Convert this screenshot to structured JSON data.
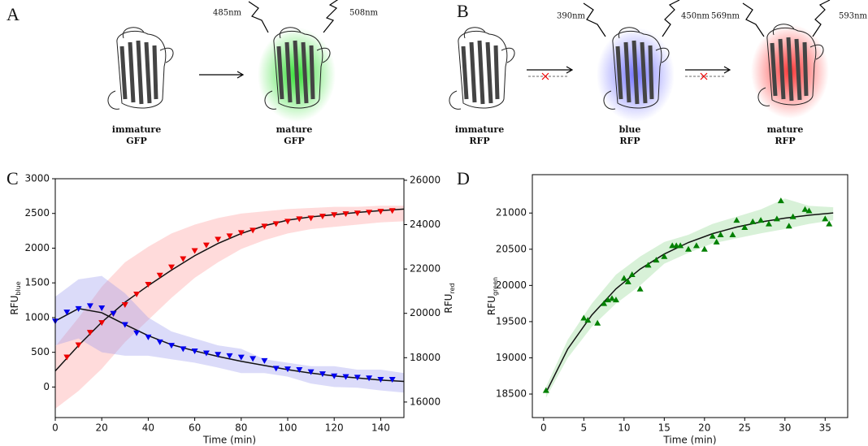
{
  "diagram": {
    "panels": [
      "A",
      "B",
      "C",
      "D"
    ],
    "wavelengths": [
      "485nm",
      "508nm",
      "390nm",
      "450nm",
      "569nm",
      "593nm"
    ],
    "labels": [
      [
        "immature",
        "GFP"
      ],
      [
        "mature",
        "GFP"
      ],
      [
        "immature",
        "RFP"
      ],
      [
        "blue",
        "RFP"
      ],
      [
        "mature",
        "RFP"
      ]
    ]
  },
  "chart_data": [
    {
      "type": "scatter",
      "xlabel": "Time (min)",
      "ylabel": {
        "text": "RFU",
        "sub": "blue"
      },
      "y2label": {
        "text": "RFU",
        "sub": "red"
      },
      "xlim": [
        0,
        150
      ],
      "xticks": [
        0,
        20,
        40,
        60,
        80,
        100,
        120,
        140
      ],
      "ylim": [
        -440,
        3000
      ],
      "yticks": [
        0,
        500,
        1000,
        1500,
        2000,
        2500,
        3000
      ],
      "y2lim": [
        15300,
        26070
      ],
      "y2ticks": [
        16000,
        18000,
        20000,
        22000,
        24000,
        26000
      ],
      "series": [
        {
          "style": "band",
          "axis": "y2",
          "color": "#ff9999",
          "opacity": 0.35,
          "x": [
            0,
            10,
            20,
            30,
            40,
            50,
            60,
            70,
            80,
            90,
            100,
            110,
            120,
            130,
            140,
            150
          ],
          "upper": [
            18500,
            19800,
            21200,
            22300,
            23000,
            23600,
            24000,
            24300,
            24500,
            24600,
            24700,
            24750,
            24800,
            24800,
            24850,
            24850
          ],
          "lower": [
            15700,
            16500,
            17500,
            18700,
            19700,
            20700,
            21600,
            22300,
            22900,
            23300,
            23600,
            23800,
            23900,
            24000,
            24100,
            24150
          ]
        },
        {
          "style": "band",
          "axis": "y",
          "color": "#9999ee",
          "opacity": 0.35,
          "x": [
            0,
            10,
            20,
            30,
            40,
            50,
            60,
            70,
            80,
            90,
            100,
            110,
            120,
            130,
            140,
            150
          ],
          "upper": [
            1300,
            1550,
            1600,
            1350,
            1000,
            800,
            700,
            600,
            550,
            400,
            350,
            300,
            300,
            250,
            250,
            200
          ],
          "lower": [
            600,
            700,
            500,
            450,
            450,
            400,
            350,
            280,
            200,
            200,
            150,
            50,
            0,
            -10,
            -50,
            -80
          ]
        },
        {
          "style": "line",
          "axis": "y2",
          "color": "#111111",
          "x": [
            0,
            10,
            20,
            30,
            40,
            50,
            60,
            70,
            80,
            90,
            100,
            110,
            120,
            130,
            140,
            150
          ],
          "values": [
            17400,
            18550,
            19600,
            20500,
            21250,
            21950,
            22600,
            23150,
            23600,
            23950,
            24200,
            24350,
            24450,
            24550,
            24630,
            24700
          ]
        },
        {
          "style": "line",
          "axis": "y",
          "color": "#111111",
          "x": [
            0,
            10,
            20,
            30,
            40,
            50,
            60,
            70,
            80,
            90,
            100,
            110,
            120,
            130,
            140,
            150
          ],
          "values": [
            950,
            1130,
            1070,
            900,
            740,
            610,
            520,
            440,
            370,
            310,
            250,
            200,
            160,
            130,
            100,
            80
          ]
        },
        {
          "style": "marker",
          "marker": "down",
          "axis": "y2",
          "color": "#ee0000",
          "x": [
            5,
            10,
            15,
            20,
            25,
            30,
            35,
            40,
            45,
            50,
            55,
            60,
            65,
            70,
            75,
            80,
            85,
            90,
            95,
            100,
            105,
            110,
            115,
            120,
            125,
            130,
            135,
            140,
            145
          ],
          "values": [
            18030,
            18580,
            19140,
            19580,
            19990,
            20390,
            20870,
            21310,
            21720,
            22090,
            22460,
            22830,
            23080,
            23340,
            23490,
            23640,
            23750,
            23930,
            24040,
            24150,
            24260,
            24300,
            24380,
            24450,
            24490,
            24520,
            24560,
            24600,
            24630
          ]
        },
        {
          "style": "marker",
          "marker": "down",
          "axis": "y",
          "color": "#0000ee",
          "x": [
            0,
            5,
            10,
            15,
            20,
            25,
            30,
            35,
            40,
            45,
            50,
            55,
            60,
            65,
            70,
            75,
            80,
            85,
            90,
            95,
            100,
            105,
            110,
            115,
            120,
            125,
            130,
            135,
            140,
            145
          ],
          "values": [
            950,
            1080,
            1130,
            1170,
            1140,
            1060,
            900,
            780,
            720,
            650,
            600,
            550,
            520,
            490,
            470,
            450,
            430,
            410,
            380,
            270,
            260,
            250,
            220,
            190,
            160,
            150,
            140,
            130,
            110,
            110
          ]
        }
      ]
    },
    {
      "type": "scatter",
      "xlabel": "Time (min)",
      "ylabel": {
        "text": "RFU",
        "sub": "green"
      },
      "xlim": [
        -1.4,
        37.8
      ],
      "xticks": [
        0,
        5,
        10,
        15,
        20,
        25,
        30,
        35
      ],
      "ylim": [
        18175,
        21530
      ],
      "yticks": [
        18500,
        19000,
        19500,
        20000,
        20500,
        21000
      ],
      "series": [
        {
          "style": "band",
          "axis": "y",
          "color": "#90d890",
          "opacity": 0.35,
          "x": [
            0.3,
            3,
            6,
            9,
            12,
            15,
            18,
            21,
            24,
            27,
            30,
            33,
            36
          ],
          "upper": [
            18600,
            19250,
            19750,
            20150,
            20400,
            20600,
            20700,
            20850,
            20950,
            21050,
            21200,
            21100,
            21080
          ],
          "lower": [
            18450,
            19000,
            19430,
            19750,
            20000,
            20300,
            20450,
            20580,
            20650,
            20720,
            20780,
            20850,
            20900
          ]
        },
        {
          "style": "line",
          "axis": "y",
          "color": "#111111",
          "x": [
            0.3,
            3,
            6,
            9,
            12,
            15,
            18,
            21,
            24,
            27,
            30,
            33,
            36
          ],
          "values": [
            18520,
            19122,
            19592,
            19953,
            20226,
            20434,
            20593,
            20715,
            20806,
            20876,
            20930,
            20970,
            21001
          ]
        },
        {
          "style": "marker",
          "marker": "up",
          "axis": "y",
          "color": "#008000",
          "x": [
            0.3,
            5,
            5.5,
            6.7,
            7.5,
            8,
            8.5,
            9,
            10,
            10.5,
            11,
            12,
            13,
            14,
            15,
            16,
            16.5,
            17,
            18,
            19,
            20,
            21,
            21.5,
            22,
            23.5,
            24,
            25,
            26,
            27,
            28,
            29,
            29.5,
            30.5,
            31,
            32.5,
            33,
            35,
            35.5
          ],
          "values": [
            18550,
            19550,
            19520,
            19480,
            19750,
            19800,
            19820,
            19800,
            20100,
            20050,
            20150,
            19950,
            20280,
            20350,
            20400,
            20550,
            20550,
            20550,
            20500,
            20550,
            20500,
            20680,
            20600,
            20700,
            20700,
            20900,
            20800,
            20880,
            20900,
            20850,
            20920,
            21170,
            20820,
            20950,
            21050,
            21030,
            20920,
            20850
          ]
        }
      ]
    }
  ]
}
